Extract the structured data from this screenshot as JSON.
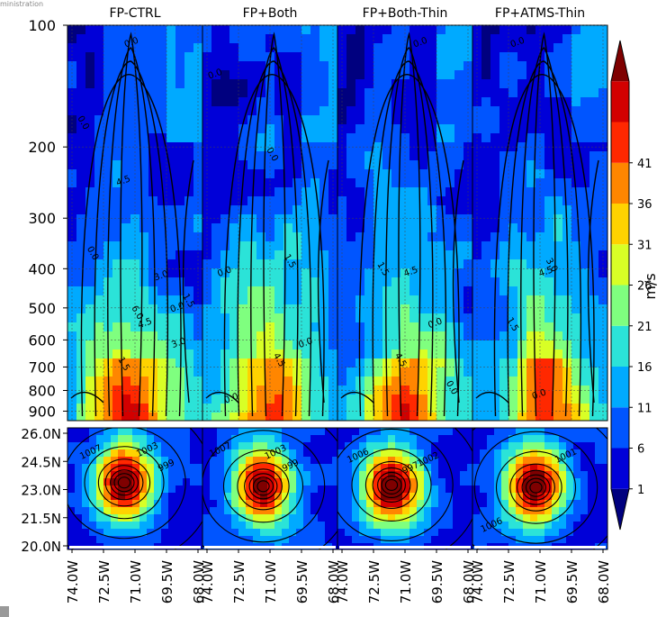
{
  "corner_text": "ministration",
  "chart_data": {
    "type": "heatmap",
    "panels": [
      "FP-CTRL",
      "FP+Both",
      "FP+Both-Thin",
      "FP+ATMS-Thin"
    ],
    "top_row": {
      "y_ticks": [
        "100",
        "200",
        "300",
        "400",
        "500",
        "600",
        "700",
        "800",
        "900"
      ],
      "y_values": [
        100,
        200,
        300,
        400,
        500,
        600,
        700,
        800,
        900
      ],
      "y_scale": "log",
      "y_range": [
        100,
        950
      ]
    },
    "bottom_row": {
      "y_ticks": [
        "26.0N",
        "24.5N",
        "23.0N",
        "21.5N",
        "20.0N"
      ],
      "y_values": [
        26.0,
        24.5,
        23.0,
        21.5,
        20.0
      ]
    },
    "x_ticks": [
      "74.0W",
      "72.5W",
      "71.0W",
      "69.5W",
      "68.0W"
    ],
    "x_values": [
      -74.0,
      -72.5,
      -71.0,
      -69.5,
      -68.0
    ],
    "colorbar": {
      "label": "m/s",
      "tick_labels": [
        "1",
        "6",
        "11",
        "16",
        "21",
        "26",
        "31",
        "36",
        "41"
      ],
      "levels": [
        1,
        6,
        11,
        16,
        21,
        26,
        31,
        36,
        41
      ],
      "colors": [
        "#00007f",
        "#0000d8",
        "#0055ff",
        "#00aaff",
        "#2be3d8",
        "#7fff7f",
        "#d8ff26",
        "#ffd200",
        "#ff8600",
        "#ff2800",
        "#d20000",
        "#7f0000"
      ]
    },
    "contour_labels": [
      [
        "0.0",
        "0.0",
        "4.5",
        "0.0",
        "3.0",
        "6.0",
        "0.0",
        "1.5",
        "3.0",
        "1.5",
        "4.5"
      ],
      [
        "0.0",
        "0.0",
        "0.0",
        "1.5",
        "0.0",
        "4.5",
        "0.0"
      ],
      [
        "0.0",
        "1.5",
        "4.5",
        "4.5",
        "0.0",
        "0.0"
      ],
      [
        "0.0",
        "3.0",
        "4.5",
        "1.5",
        "0.0"
      ]
    ],
    "slp_labels": [
      [
        "1007",
        "1003",
        "999"
      ],
      [
        "1007",
        "1003",
        "999"
      ],
      [
        "1006",
        "997",
        "1002"
      ],
      [
        "1001",
        "1006"
      ]
    ]
  }
}
